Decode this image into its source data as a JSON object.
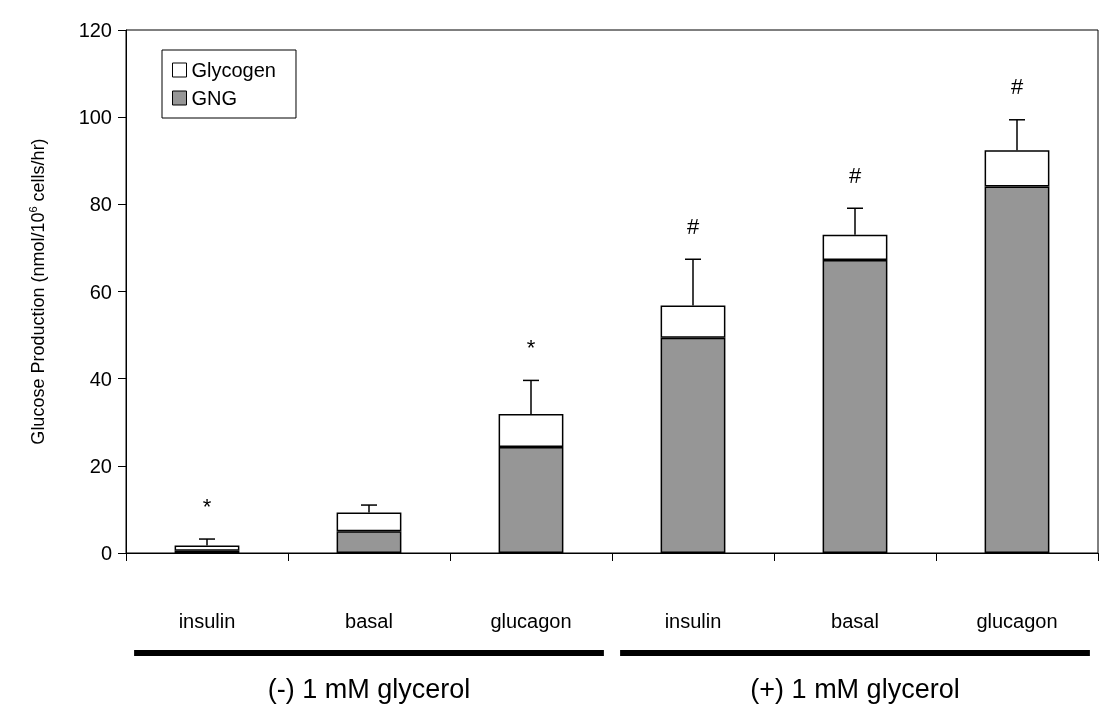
{
  "chart_data": {
    "type": "bar",
    "stacked": true,
    "ylabel": "Glucose Production (nmol/10$^{6}$ cells/hr)",
    "categories": [
      "insulin",
      "basal",
      "glucagon",
      "insulin",
      "basal",
      "glucagon"
    ],
    "series": [
      {
        "name": "GNG",
        "color": "#969696",
        "values": [
          0.5,
          5.0,
          24.3,
          49.4,
          67.2,
          84.1
        ]
      },
      {
        "name": "Glycogen",
        "color": "#ffffff",
        "values": [
          1.2,
          4.3,
          7.6,
          7.4,
          5.8,
          8.3
        ],
        "errors": [
          [
            1.7,
            3.2
          ],
          [
            9.3,
            11.0
          ],
          [
            31.9,
            39.6
          ],
          [
            56.8,
            67.4
          ],
          [
            73.0,
            79.1
          ],
          [
            92.4,
            99.4
          ]
        ],
        "value_labels": [
          "*",
          null,
          "*",
          "#",
          "#",
          "#"
        ]
      }
    ],
    "ylim": [
      0,
      120
    ],
    "yticks": [
      0,
      20,
      40,
      60,
      80,
      100,
      120
    ],
    "grid": false,
    "legend": "top left",
    "annotations": [
      "(-) 1 mM glycerol",
      "(+) 1 mM glycerol"
    ]
  }
}
